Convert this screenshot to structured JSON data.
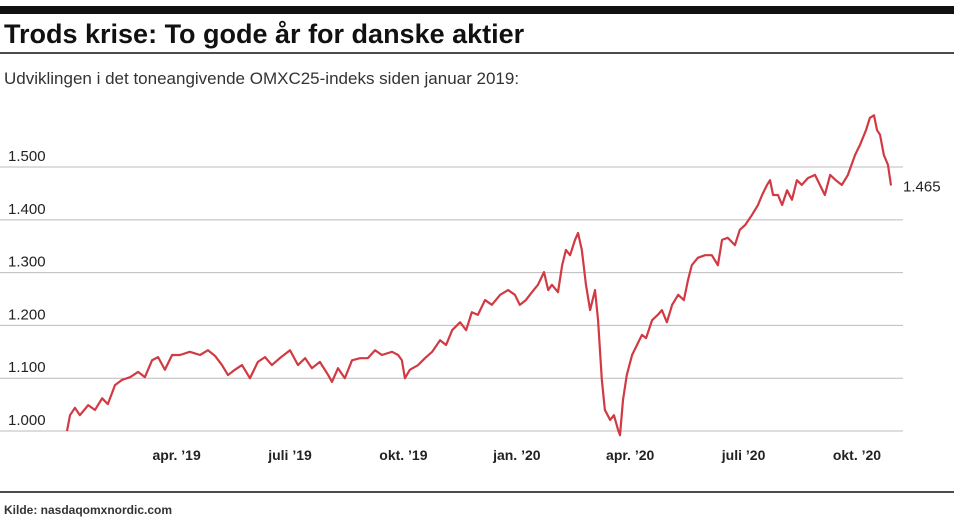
{
  "chart_data": {
    "type": "line",
    "title": "Trods krise: To gode år for danske aktier",
    "subtitle": "Udviklingen i det toneangivende OMXC25-indeks siden januar 2019:",
    "source": "Kilde: nasdaqomxnordic.com",
    "series": [
      {
        "color": "#d13a43",
        "x": [
          0.1,
          0.18,
          0.31,
          0.44,
          0.66,
          0.84,
          1.03,
          1.18,
          1.37,
          1.56,
          1.77,
          1.98,
          2.16,
          2.35,
          2.51,
          2.69,
          2.88,
          3.09,
          3.35,
          3.62,
          3.83,
          4.02,
          4.2,
          4.36,
          4.54,
          4.73,
          4.94,
          5.15,
          5.34,
          5.52,
          5.73,
          6.0,
          6.21,
          6.4,
          6.58,
          6.79,
          7.01,
          7.11,
          7.27,
          7.45,
          7.64,
          7.85,
          8.06,
          8.25,
          8.43,
          8.7,
          8.86,
          8.96,
          9.04,
          9.17,
          9.39,
          9.57,
          9.76,
          9.97,
          10.13,
          10.29,
          10.5,
          10.66,
          10.81,
          10.97,
          11.16,
          11.34,
          11.56,
          11.77,
          11.95,
          12.08,
          12.24,
          12.4,
          12.56,
          12.72,
          12.83,
          12.93,
          13.09,
          13.2,
          13.3,
          13.41,
          13.54,
          13.62,
          13.72,
          13.83,
          13.94,
          14.07,
          14.15,
          14.25,
          14.33,
          14.47,
          14.57,
          14.68,
          14.73,
          14.81,
          14.91,
          15.05,
          15.18,
          15.31,
          15.42,
          15.58,
          15.73,
          15.84,
          15.97,
          16.11,
          16.27,
          16.42,
          16.53,
          16.63,
          16.79,
          16.98,
          17.16,
          17.32,
          17.43,
          17.58,
          17.77,
          17.9,
          18.04,
          18.22,
          18.38,
          18.49,
          18.62,
          18.7,
          18.78,
          18.91,
          19.02,
          19.15,
          19.28,
          19.41,
          19.54,
          19.7,
          19.89,
          20.02,
          20.15,
          20.29,
          20.44,
          20.6,
          20.76,
          20.95,
          21.08,
          21.24,
          21.34,
          21.45,
          21.53,
          21.61,
          21.71,
          21.82,
          21.9
        ],
        "values": [
          1000,
          1030,
          1044,
          1030,
          1049,
          1040,
          1062,
          1051,
          1087,
          1097,
          1102,
          1112,
          1102,
          1134,
          1140,
          1116,
          1144,
          1144,
          1150,
          1144,
          1153,
          1142,
          1125,
          1106,
          1116,
          1125,
          1100,
          1131,
          1140,
          1125,
          1138,
          1153,
          1125,
          1138,
          1119,
          1131,
          1106,
          1093,
          1119,
          1100,
          1134,
          1138,
          1138,
          1153,
          1144,
          1150,
          1144,
          1134,
          1100,
          1116,
          1125,
          1138,
          1150,
          1172,
          1163,
          1191,
          1206,
          1191,
          1225,
          1220,
          1248,
          1239,
          1258,
          1267,
          1258,
          1239,
          1248,
          1263,
          1277,
          1301,
          1267,
          1277,
          1263,
          1314,
          1343,
          1333,
          1362,
          1375,
          1343,
          1277,
          1229,
          1267,
          1210,
          1097,
          1040,
          1021,
          1030,
          1002,
          992,
          1059,
          1106,
          1144,
          1163,
          1182,
          1176,
          1210,
          1220,
          1229,
          1206,
          1239,
          1258,
          1248,
          1286,
          1314,
          1328,
          1333,
          1333,
          1314,
          1362,
          1366,
          1352,
          1381,
          1390,
          1409,
          1428,
          1447,
          1466,
          1475,
          1447,
          1447,
          1428,
          1456,
          1438,
          1475,
          1466,
          1479,
          1485,
          1466,
          1447,
          1485,
          1475,
          1466,
          1485,
          1523,
          1542,
          1570,
          1593,
          1598,
          1570,
          1561,
          1523,
          1504,
          1465
        ]
      }
    ],
    "annotations": [
      {
        "x": 21.9,
        "value": 1465,
        "label": "1.465"
      }
    ],
    "xlim": [
      0.1,
      21.9
    ],
    "xticks": [
      {
        "value": 3,
        "label": "apr. ’19"
      },
      {
        "value": 6,
        "label": "juli ’19"
      },
      {
        "value": 9,
        "label": "okt. ’19"
      },
      {
        "value": 12,
        "label": "jan. ’20"
      },
      {
        "value": 15,
        "label": "apr. ’20"
      },
      {
        "value": 18,
        "label": "juli ’20"
      },
      {
        "value": 21,
        "label": "okt. ’20"
      }
    ],
    "ylim": [
      980,
      1600
    ],
    "yticks": [
      {
        "value": 1000,
        "label": "1.000"
      },
      {
        "value": 1100,
        "label": "1.100"
      },
      {
        "value": 1200,
        "label": "1.200"
      },
      {
        "value": 1300,
        "label": "1.300"
      },
      {
        "value": 1400,
        "label": "1.400"
      },
      {
        "value": 1500,
        "label": "1.500"
      }
    ],
    "grid": true
  }
}
